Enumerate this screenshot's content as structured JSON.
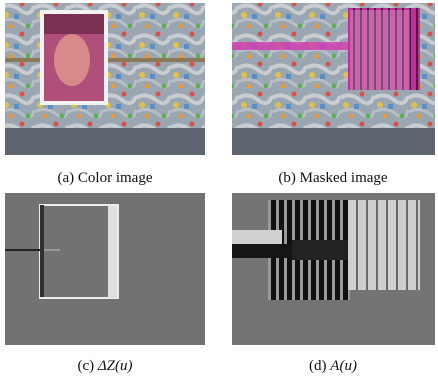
{
  "figures": [
    {
      "label": "(a)",
      "caption": "Color image"
    },
    {
      "label": "(b)",
      "caption": "Masked image"
    },
    {
      "label": "(c)",
      "caption": "ΔZ(u)"
    },
    {
      "label": "(d)",
      "caption": "A(u)"
    }
  ]
}
